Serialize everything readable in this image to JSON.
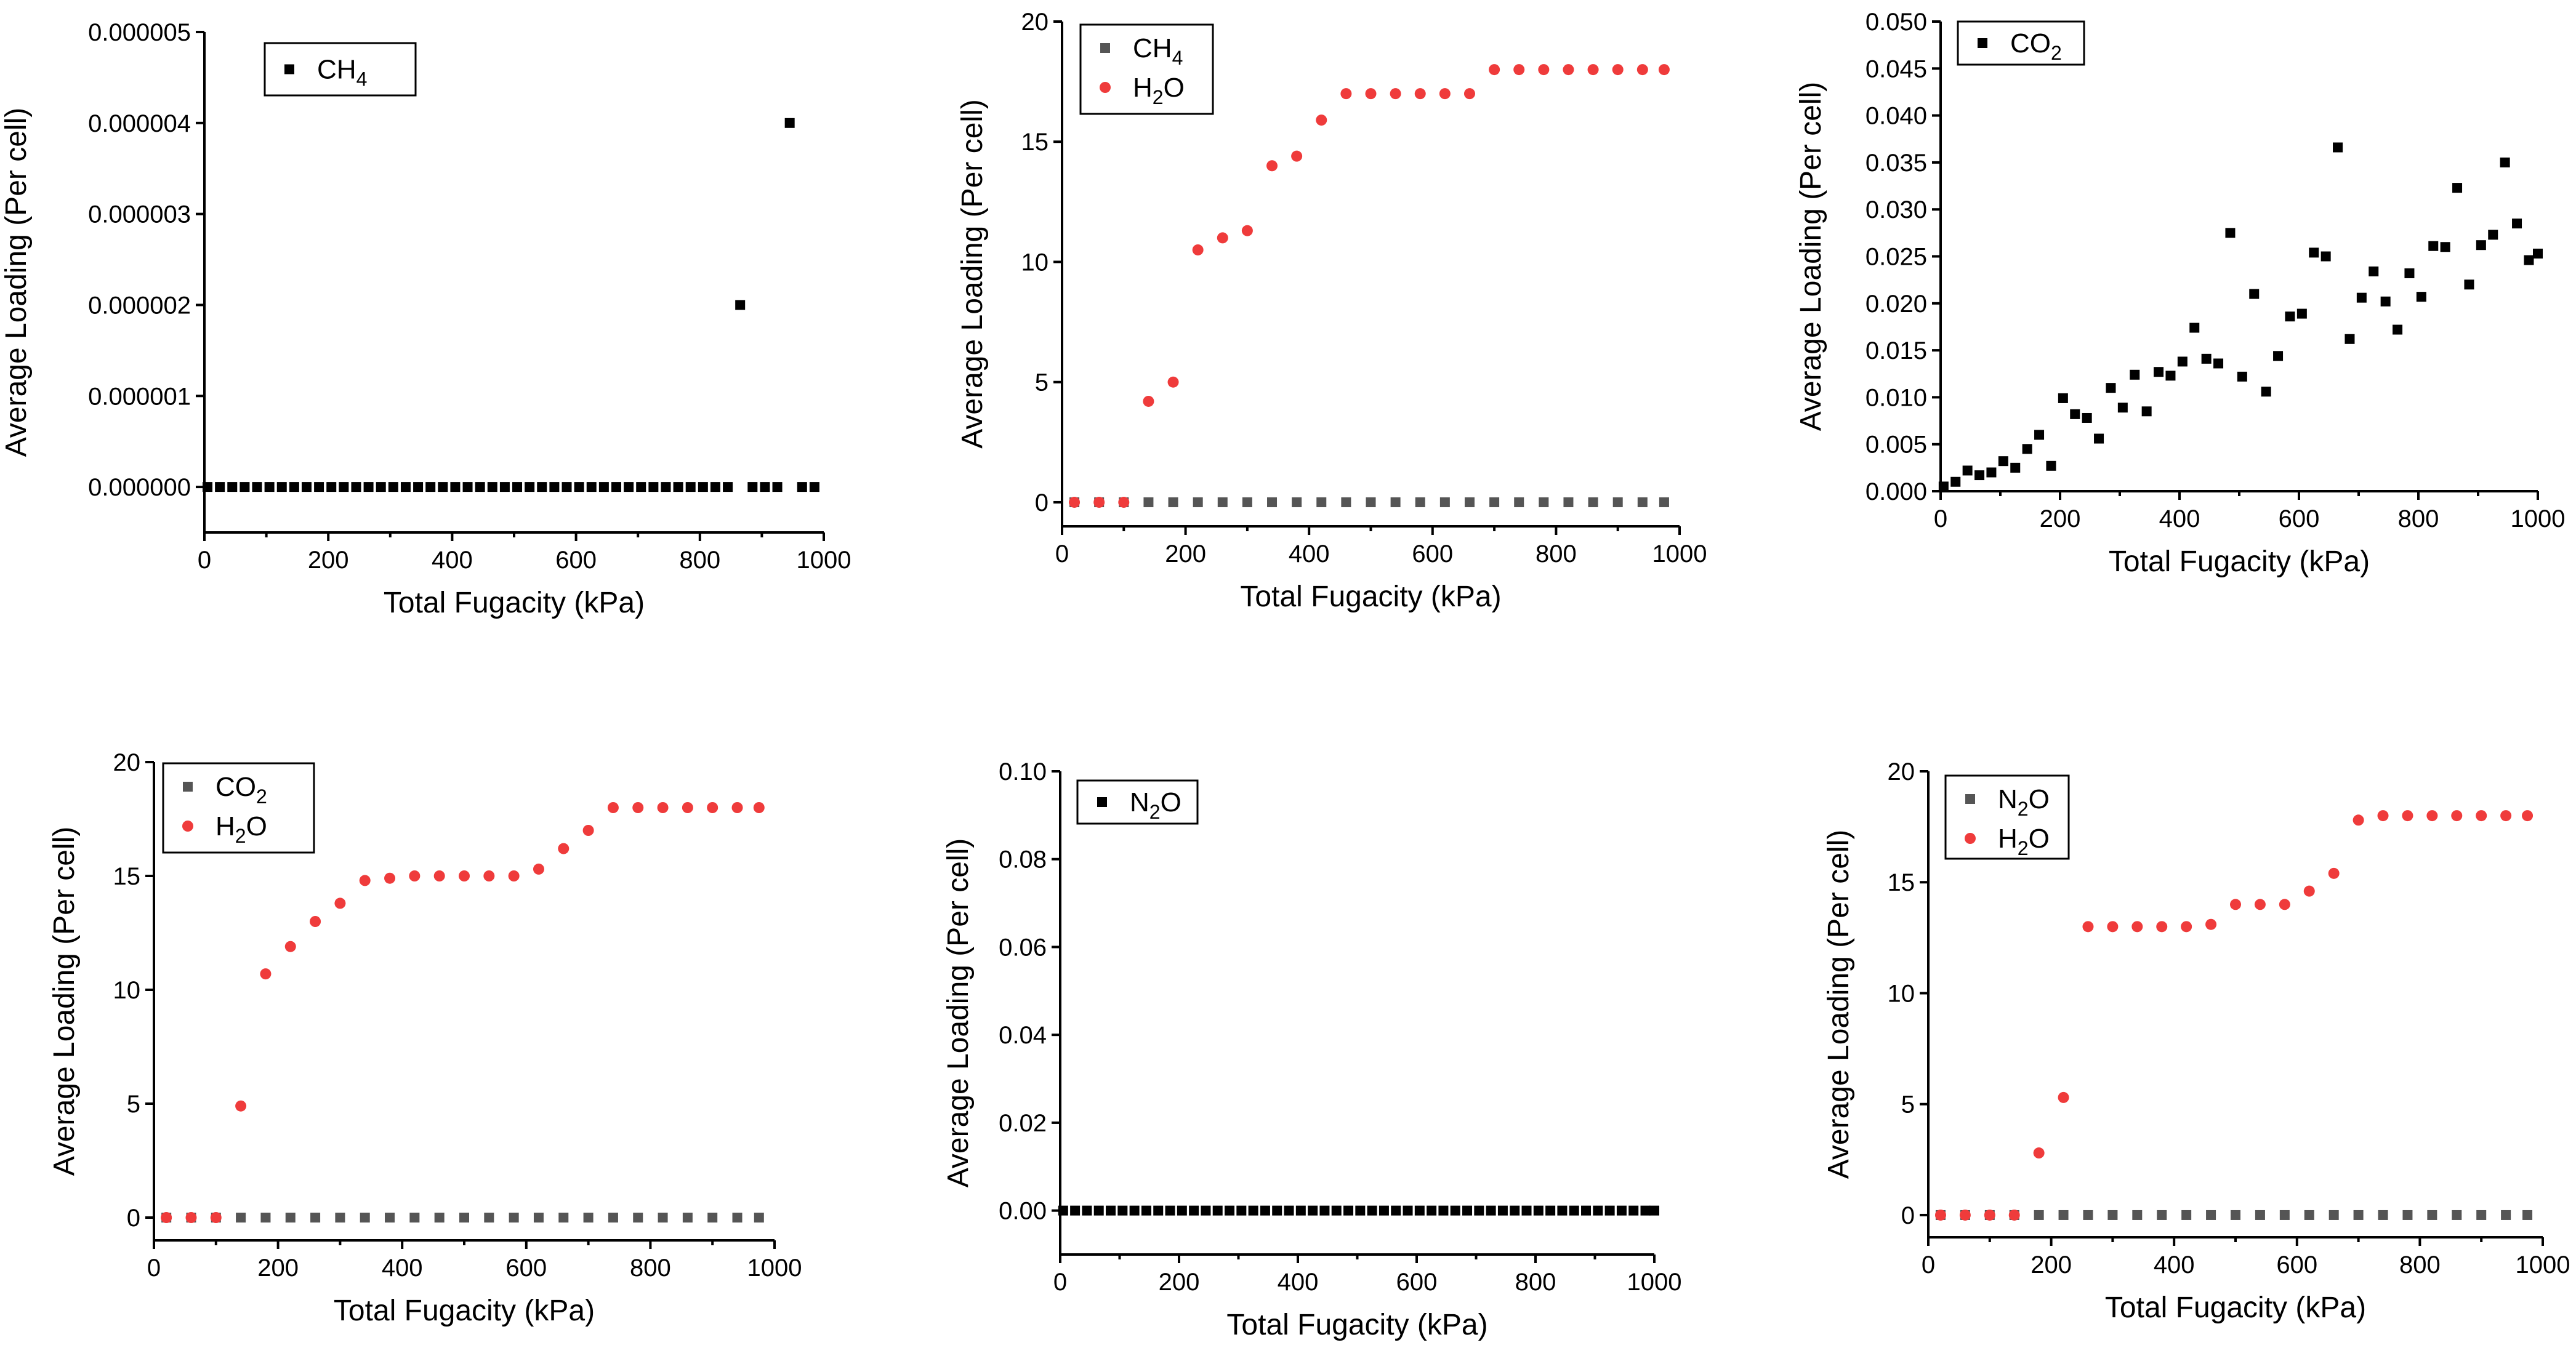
{
  "chart_data": [
    {
      "id": "p1",
      "type": "scatter",
      "xlabel": "Total Fugacity (kPa)",
      "ylabel": "Average Loading (Per cell)",
      "xlim": [
        0,
        1000
      ],
      "ylim": [
        -5e-07,
        5e-06
      ],
      "xticks": [
        "0",
        "200",
        "400",
        "600",
        "800",
        "1000"
      ],
      "yticks": [
        "0.000000",
        "0.000001",
        "0.000002",
        "0.000003",
        "0.000004",
        "0.000005"
      ],
      "ytick_values": [
        0,
        1e-06,
        2e-06,
        3e-06,
        4e-06,
        5e-06
      ],
      "legend_position": "top-left",
      "series": [
        {
          "name": "CH4",
          "name_main": "CH",
          "name_sub": "4",
          "name_tail": "",
          "marker": "square",
          "color": "#000000",
          "x": [
            5,
            25,
            45,
            65,
            85,
            105,
            125,
            145,
            165,
            185,
            205,
            225,
            245,
            265,
            285,
            305,
            325,
            345,
            365,
            385,
            405,
            425,
            445,
            465,
            485,
            505,
            525,
            545,
            565,
            585,
            605,
            625,
            645,
            665,
            685,
            705,
            725,
            745,
            765,
            785,
            805,
            825,
            845,
            865,
            885,
            905,
            925,
            945,
            965,
            985
          ],
          "y": [
            0,
            0,
            0,
            0,
            0,
            0,
            0,
            0,
            0,
            0,
            0,
            0,
            0,
            0,
            0,
            0,
            0,
            0,
            0,
            0,
            0,
            0,
            0,
            0,
            0,
            0,
            0,
            0,
            0,
            0,
            0,
            0,
            0,
            0,
            0,
            0,
            0,
            0,
            0,
            0,
            0,
            0,
            0,
            2e-06,
            0,
            0,
            0,
            4e-06,
            0,
            0
          ]
        }
      ]
    },
    {
      "id": "p2",
      "type": "scatter",
      "xlabel": "Total Fugacity (kPa)",
      "ylabel": "Average Loading (Per cell)",
      "xlim": [
        0,
        1000
      ],
      "ylim": [
        -1,
        20
      ],
      "xticks": [
        "0",
        "200",
        "400",
        "600",
        "800",
        "1000"
      ],
      "yticks": [
        "0",
        "5",
        "10",
        "15",
        "20"
      ],
      "ytick_values": [
        0,
        5,
        10,
        15,
        20
      ],
      "legend_position": "top-left",
      "series": [
        {
          "name": "CH4",
          "name_main": "CH",
          "name_sub": "4",
          "name_tail": "",
          "marker": "square",
          "color": "#555555",
          "x": [
            20,
            60,
            100,
            140,
            180,
            220,
            260,
            300,
            340,
            380,
            420,
            460,
            500,
            540,
            580,
            620,
            660,
            700,
            740,
            780,
            820,
            860,
            900,
            940,
            975
          ],
          "y": [
            0,
            0,
            0,
            0,
            0,
            0,
            0,
            0,
            0,
            0,
            0,
            0,
            0,
            0,
            0,
            0,
            0,
            0,
            0,
            0,
            0,
            0,
            0,
            0,
            0
          ]
        },
        {
          "name": "H2O",
          "name_main": "H",
          "name_sub": "2",
          "name_tail": "O",
          "marker": "circle",
          "color": "#ef3b3b",
          "x": [
            20,
            60,
            100,
            140,
            180,
            220,
            260,
            300,
            340,
            380,
            420,
            460,
            500,
            540,
            580,
            620,
            660,
            700,
            740,
            780,
            820,
            860,
            900,
            940,
            975
          ],
          "y": [
            0,
            0,
            0,
            4.2,
            5.0,
            10.5,
            11.0,
            11.3,
            14.0,
            14.4,
            15.9,
            17,
            17,
            17,
            17,
            17,
            17,
            18,
            18,
            18,
            18,
            18,
            18,
            18,
            18
          ]
        }
      ]
    },
    {
      "id": "p3",
      "type": "scatter",
      "xlabel": "Total Fugacity (kPa)",
      "ylabel": "Average Loading (Per cell)",
      "xlim": [
        0,
        1000
      ],
      "ylim": [
        0,
        0.05
      ],
      "xticks": [
        "0",
        "200",
        "400",
        "600",
        "800",
        "1000"
      ],
      "yticks": [
        "0.000",
        "0.005",
        "0.010",
        "0.015",
        "0.020",
        "0.025",
        "0.030",
        "0.035",
        "0.040",
        "0.045",
        "0.050"
      ],
      "ytick_values": [
        0,
        0.005,
        0.01,
        0.015,
        0.02,
        0.025,
        0.03,
        0.035,
        0.04,
        0.045,
        0.05
      ],
      "legend_position": "top-left",
      "series": [
        {
          "name": "CO2",
          "name_main": "CO",
          "name_sub": "2",
          "name_tail": "",
          "marker": "square",
          "color": "#000000",
          "x": [
            5,
            25,
            45,
            65,
            85,
            105,
            125,
            145,
            165,
            185,
            205,
            225,
            245,
            265,
            285,
            305,
            325,
            345,
            365,
            385,
            405,
            425,
            445,
            465,
            485,
            505,
            525,
            545,
            565,
            585,
            605,
            625,
            645,
            665,
            685,
            705,
            725,
            745,
            765,
            785,
            805,
            825,
            845,
            865,
            885,
            905,
            925,
            945,
            965,
            985,
            1000
          ],
          "y": [
            0.0005,
            0.001,
            0.0022,
            0.0017,
            0.002,
            0.0032,
            0.0025,
            0.0045,
            0.006,
            0.0027,
            0.0099,
            0.0082,
            0.0078,
            0.0056,
            0.011,
            0.0089,
            0.0124,
            0.0085,
            0.0127,
            0.0123,
            0.0138,
            0.0174,
            0.0141,
            0.0136,
            0.0275,
            0.0122,
            0.021,
            0.0106,
            0.0144,
            0.0186,
            0.0189,
            0.0254,
            0.025,
            0.0366,
            0.0162,
            0.0206,
            0.0234,
            0.0202,
            0.0172,
            0.0232,
            0.0207,
            0.0261,
            0.026,
            0.0323,
            0.022,
            0.0262,
            0.0273,
            0.035,
            0.0285,
            0.0246,
            0.0253
          ]
        }
      ]
    },
    {
      "id": "p4",
      "type": "scatter",
      "xlabel": "Total Fugacity (kPa)",
      "ylabel": "Average Loading (Per cell)",
      "xlim": [
        0,
        1000
      ],
      "ylim": [
        -1,
        20
      ],
      "xticks": [
        "0",
        "200",
        "400",
        "600",
        "800",
        "1000"
      ],
      "yticks": [
        "0",
        "5",
        "10",
        "15",
        "20"
      ],
      "ytick_values": [
        0,
        5,
        10,
        15,
        20
      ],
      "legend_position": "top-left",
      "series": [
        {
          "name": "CO2",
          "name_main": "CO",
          "name_sub": "2",
          "name_tail": "",
          "marker": "square",
          "color": "#555555",
          "x": [
            20,
            60,
            100,
            140,
            180,
            220,
            260,
            300,
            340,
            380,
            420,
            460,
            500,
            540,
            580,
            620,
            660,
            700,
            740,
            780,
            820,
            860,
            900,
            940,
            975
          ],
          "y": [
            0,
            0,
            0,
            0,
            0,
            0,
            0,
            0,
            0,
            0,
            0,
            0,
            0,
            0,
            0,
            0,
            0,
            0,
            0,
            0,
            0,
            0,
            0,
            0,
            0
          ]
        },
        {
          "name": "H2O",
          "name_main": "H",
          "name_sub": "2",
          "name_tail": "O",
          "marker": "circle",
          "color": "#ef3b3b",
          "x": [
            20,
            60,
            100,
            140,
            180,
            220,
            260,
            300,
            340,
            380,
            420,
            460,
            500,
            540,
            580,
            620,
            660,
            700,
            740,
            780,
            820,
            860,
            900,
            940,
            975
          ],
          "y": [
            0,
            0,
            0,
            4.9,
            10.7,
            11.9,
            13.0,
            13.8,
            14.8,
            14.9,
            15,
            15,
            15,
            15,
            15,
            15.3,
            16.2,
            17,
            18,
            18,
            18,
            18,
            18,
            18,
            18
          ]
        }
      ]
    },
    {
      "id": "p5",
      "type": "scatter",
      "xlabel": "Total Fugacity (kPa)",
      "ylabel": "Average Loading (Per cell)",
      "xlim": [
        0,
        1000
      ],
      "ylim": [
        -0.01,
        0.1
      ],
      "xticks": [
        "0",
        "200",
        "400",
        "600",
        "800",
        "1000"
      ],
      "yticks": [
        "0.00",
        "0.02",
        "0.04",
        "0.06",
        "0.08",
        "0.10"
      ],
      "ytick_values": [
        0,
        0.02,
        0.04,
        0.06,
        0.08,
        0.1
      ],
      "legend_position": "top-left",
      "series": [
        {
          "name": "N2O",
          "name_main": "N",
          "name_sub": "2",
          "name_tail": "O",
          "marker": "square",
          "color": "#000000",
          "x": [
            5,
            25,
            45,
            65,
            85,
            105,
            125,
            145,
            165,
            185,
            205,
            225,
            245,
            265,
            285,
            305,
            325,
            345,
            365,
            385,
            405,
            425,
            445,
            465,
            485,
            505,
            525,
            545,
            565,
            585,
            605,
            625,
            645,
            665,
            685,
            705,
            725,
            745,
            765,
            785,
            805,
            825,
            845,
            865,
            885,
            905,
            925,
            945,
            965,
            985,
            1000
          ],
          "y": [
            0,
            0,
            0,
            0,
            0,
            0,
            0,
            0,
            0,
            0,
            0,
            0,
            0,
            0,
            0,
            0,
            0,
            0,
            0,
            0,
            0,
            0,
            0,
            0,
            0,
            0,
            0,
            0,
            0,
            0,
            0,
            0,
            0,
            0,
            0,
            0,
            0,
            0,
            0,
            0,
            0,
            0,
            0,
            0,
            0,
            0,
            0,
            0,
            0,
            0,
            0
          ]
        }
      ]
    },
    {
      "id": "p6",
      "type": "scatter",
      "xlabel": "Total Fugacity (kPa)",
      "ylabel": "Average Loading (Per cell)",
      "xlim": [
        0,
        1000
      ],
      "ylim": [
        -1,
        20
      ],
      "xticks": [
        "0",
        "200",
        "400",
        "600",
        "800",
        "1000"
      ],
      "yticks": [
        "0",
        "5",
        "10",
        "15",
        "20"
      ],
      "ytick_values": [
        0,
        5,
        10,
        15,
        20
      ],
      "legend_position": "top-left",
      "series": [
        {
          "name": "N2O",
          "name_main": "N",
          "name_sub": "2",
          "name_tail": "O",
          "marker": "square",
          "color": "#555555",
          "x": [
            20,
            60,
            100,
            140,
            180,
            220,
            260,
            300,
            340,
            380,
            420,
            460,
            500,
            540,
            580,
            620,
            660,
            700,
            740,
            780,
            820,
            860,
            900,
            940,
            975
          ],
          "y": [
            0,
            0,
            0,
            0,
            0,
            0,
            0,
            0,
            0,
            0,
            0,
            0,
            0,
            0,
            0,
            0,
            0,
            0,
            0,
            0,
            0,
            0,
            0,
            0,
            0
          ]
        },
        {
          "name": "H2O",
          "name_main": "H",
          "name_sub": "2",
          "name_tail": "O",
          "marker": "circle",
          "color": "#ef3b3b",
          "x": [
            20,
            60,
            100,
            140,
            180,
            220,
            260,
            300,
            340,
            380,
            420,
            460,
            500,
            540,
            580,
            620,
            660,
            700,
            740,
            780,
            820,
            860,
            900,
            940,
            975
          ],
          "y": [
            0,
            0,
            0,
            0,
            2.8,
            5.3,
            13,
            13,
            13,
            13,
            13,
            13.1,
            14,
            14,
            14,
            14.6,
            15.4,
            17.8,
            18,
            18,
            18,
            18,
            18,
            18,
            18
          ]
        }
      ]
    }
  ]
}
